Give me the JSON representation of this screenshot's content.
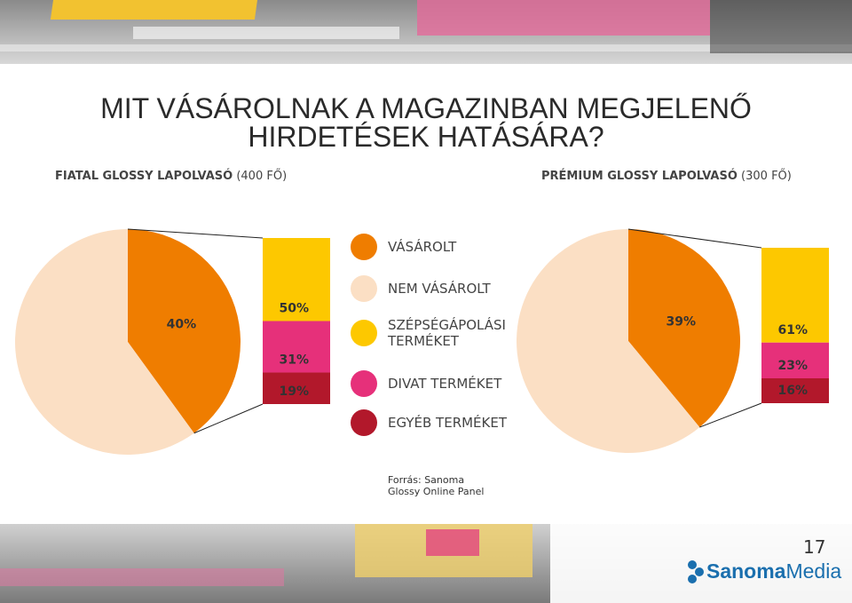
{
  "title": "MIT VÁSÁROLNAK A MAGAZINBAN MEGJELENŐ HIRDETÉSEK HATÁSÁRA?",
  "chart_data": {
    "type": "pie-of-bar",
    "pie_categories": [
      "VÁSÁROLT",
      "NEM VÁSÁROLT"
    ],
    "pie_colors": [
      "#ef7d00",
      "#fbdfc4"
    ],
    "bar_categories": [
      "SZÉPSÉGÁPOLÁSI TERMÉKET",
      "DIVAT TERMÉKET",
      "EGYÉB TERMÉKET"
    ],
    "bar_colors": [
      "#fdc800",
      "#e6307a",
      "#b2182b"
    ],
    "panels": [
      {
        "subtitle_bold": "FIATAL GLOSSY LAPOLVASÓ",
        "subtitle": "(400 FŐ)",
        "pie_values": [
          40,
          60
        ],
        "pie_value_labels": [
          "40%",
          null
        ],
        "bar_values": [
          50,
          31,
          19
        ],
        "bar_value_labels": [
          "50%",
          "31%",
          "19%"
        ]
      },
      {
        "subtitle_bold": "PRÉMIUM GLOSSY LAPOLVASÓ",
        "subtitle": "(300 FŐ)",
        "pie_values": [
          39,
          61
        ],
        "pie_value_labels": [
          "39%",
          null
        ],
        "bar_values": [
          61,
          23,
          16
        ],
        "bar_value_labels": [
          "61%",
          "23%",
          "16%"
        ]
      }
    ]
  },
  "source": "Forrás: Sanoma Glossy Online Panel",
  "page_number": "17",
  "logo": {
    "bold": "Sanoma",
    "rest": "Media"
  }
}
